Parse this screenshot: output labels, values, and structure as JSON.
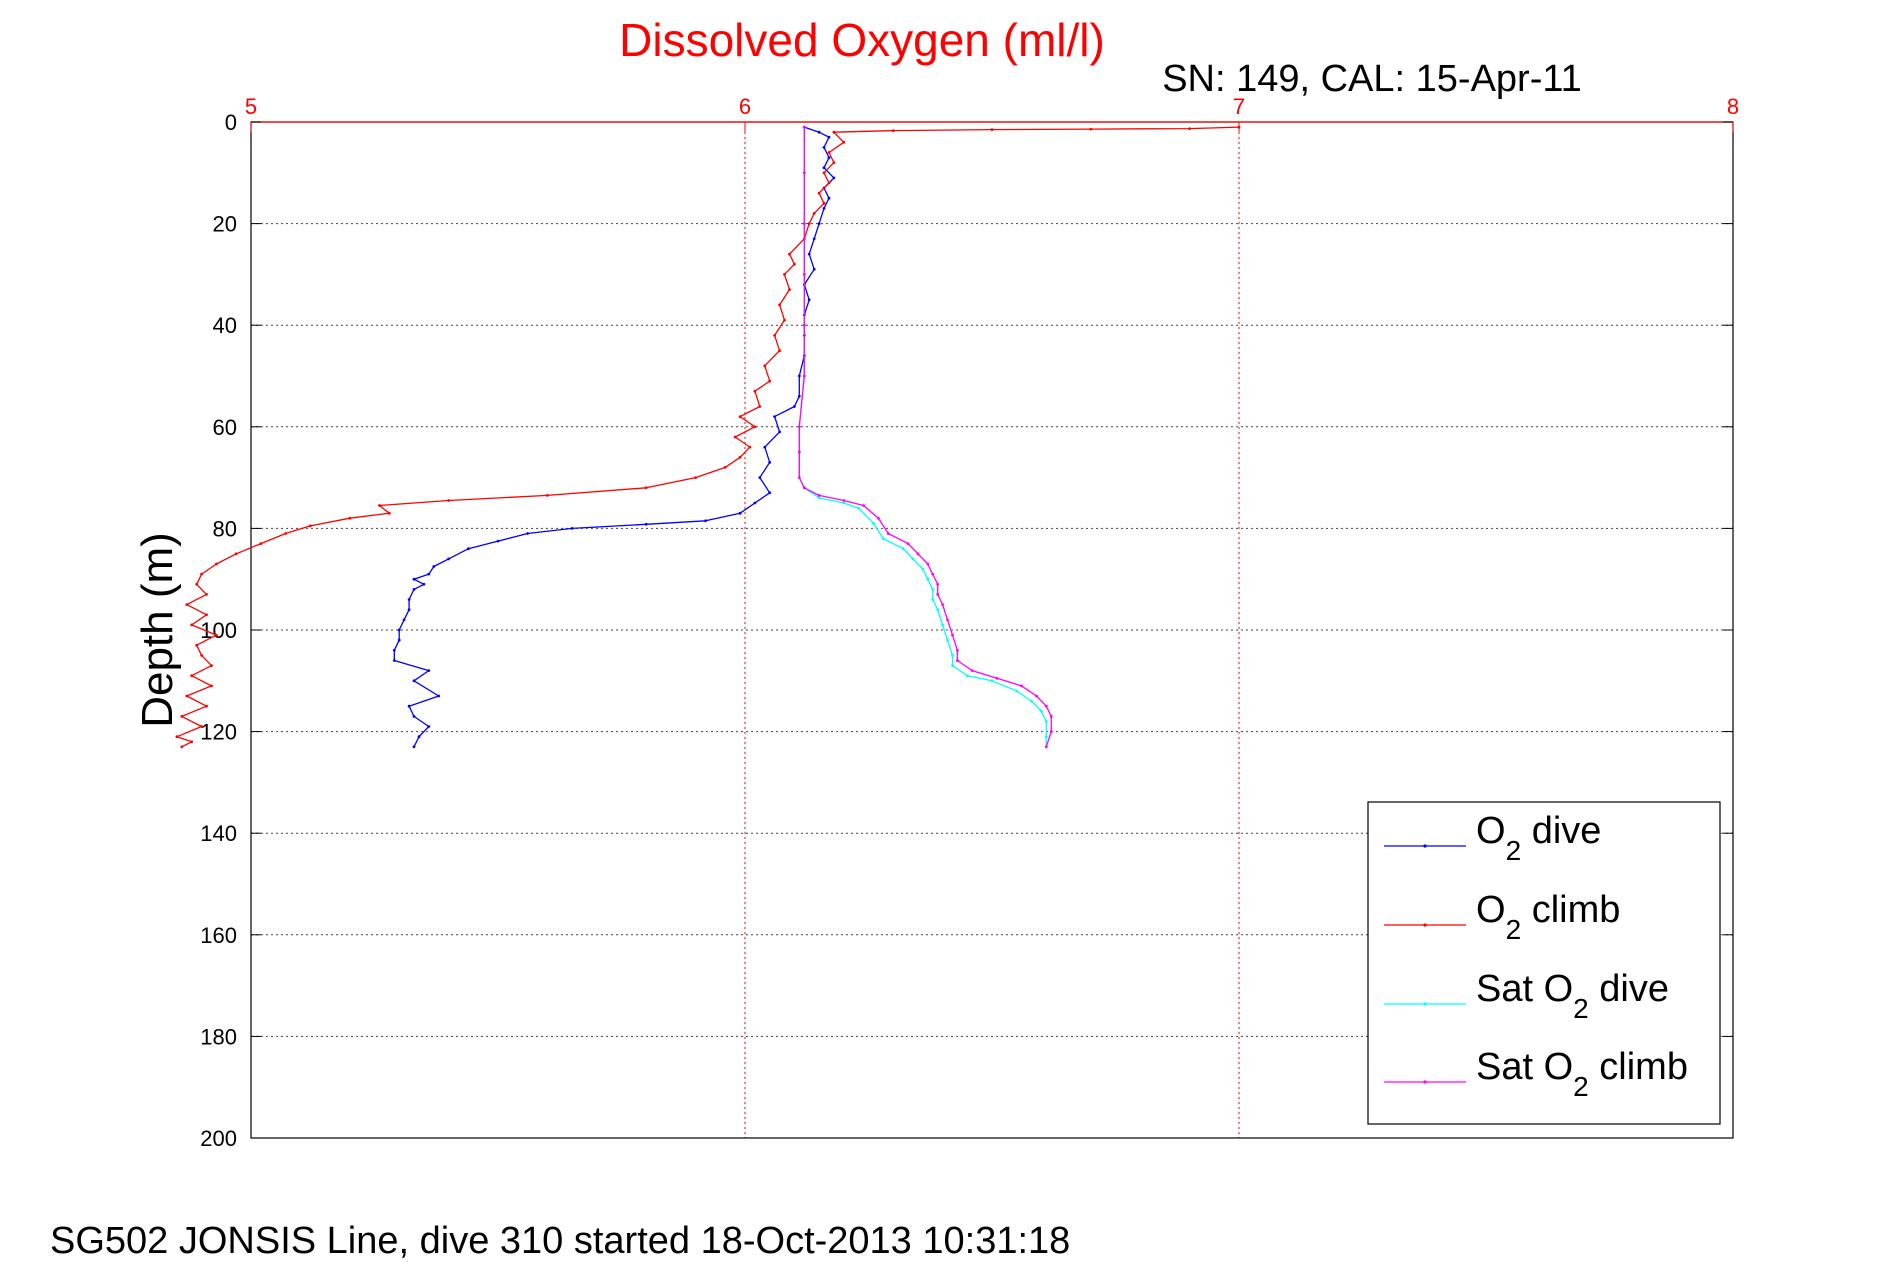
{
  "chart_data": {
    "type": "line",
    "title": "Dissolved Oxygen (ml/l)",
    "subtitle": "SN: 149, CAL: 15-Apr-11",
    "ylabel": "Depth (m)",
    "footer": "SG502 JONSIS Line, dive 310 started 18-Oct-2013 10:31:18",
    "xlim": [
      5,
      8
    ],
    "ylim": [
      0,
      200
    ],
    "y_reversed": true,
    "x_axis_position": "top",
    "xticks": [
      5,
      6,
      7,
      8
    ],
    "yticks": [
      0,
      20,
      40,
      60,
      80,
      100,
      120,
      140,
      160,
      180,
      200
    ],
    "grid": true,
    "legend_position": "bottom-right",
    "series": [
      {
        "name": "O2 dive",
        "legend_label": "O",
        "legend_sub": "2",
        "legend_suffix": " dive",
        "color": "#0000ff",
        "points": [
          [
            6.12,
            1
          ],
          [
            6.15,
            2
          ],
          [
            6.17,
            3
          ],
          [
            6.16,
            5
          ],
          [
            6.17,
            7
          ],
          [
            6.16,
            9
          ],
          [
            6.18,
            11
          ],
          [
            6.16,
            13
          ],
          [
            6.17,
            15
          ],
          [
            6.16,
            17
          ],
          [
            6.15,
            20
          ],
          [
            6.14,
            23
          ],
          [
            6.13,
            26
          ],
          [
            6.14,
            29
          ],
          [
            6.12,
            32
          ],
          [
            6.13,
            35
          ],
          [
            6.12,
            38
          ],
          [
            6.12,
            42
          ],
          [
            6.12,
            46
          ],
          [
            6.11,
            50
          ],
          [
            6.11,
            54
          ],
          [
            6.1,
            56
          ],
          [
            6.06,
            58
          ],
          [
            6.07,
            61
          ],
          [
            6.04,
            64
          ],
          [
            6.05,
            67
          ],
          [
            6.03,
            70
          ],
          [
            6.05,
            73
          ],
          [
            6.02,
            75
          ],
          [
            5.99,
            77
          ],
          [
            5.92,
            78.5
          ],
          [
            5.8,
            79.2
          ],
          [
            5.65,
            80
          ],
          [
            5.56,
            81
          ],
          [
            5.5,
            82.5
          ],
          [
            5.44,
            84
          ],
          [
            5.4,
            86
          ],
          [
            5.37,
            87.5
          ],
          [
            5.36,
            89
          ],
          [
            5.33,
            90
          ],
          [
            5.35,
            91
          ],
          [
            5.33,
            92
          ],
          [
            5.32,
            94
          ],
          [
            5.32,
            96
          ],
          [
            5.31,
            98
          ],
          [
            5.3,
            100
          ],
          [
            5.3,
            102
          ],
          [
            5.29,
            104
          ],
          [
            5.29,
            106
          ],
          [
            5.36,
            108
          ],
          [
            5.33,
            110
          ],
          [
            5.38,
            113
          ],
          [
            5.32,
            115
          ],
          [
            5.33,
            117
          ],
          [
            5.36,
            119
          ],
          [
            5.34,
            121
          ],
          [
            5.33,
            123
          ]
        ]
      },
      {
        "name": "O2 climb",
        "legend_label": "O",
        "legend_sub": "2",
        "legend_suffix": " climb",
        "color": "#ff0000",
        "points": [
          [
            7.0,
            1
          ],
          [
            6.9,
            1.3
          ],
          [
            6.7,
            1.4
          ],
          [
            6.5,
            1.5
          ],
          [
            6.3,
            1.7
          ],
          [
            6.18,
            2
          ],
          [
            6.2,
            4
          ],
          [
            6.17,
            6
          ],
          [
            6.18,
            8
          ],
          [
            6.16,
            10
          ],
          [
            6.17,
            12
          ],
          [
            6.15,
            14
          ],
          [
            6.16,
            16
          ],
          [
            6.14,
            18
          ],
          [
            6.13,
            20
          ],
          [
            6.12,
            23
          ],
          [
            6.09,
            26
          ],
          [
            6.1,
            28
          ],
          [
            6.08,
            30
          ],
          [
            6.09,
            33
          ],
          [
            6.07,
            36
          ],
          [
            6.08,
            39
          ],
          [
            6.06,
            42
          ],
          [
            6.07,
            45
          ],
          [
            6.04,
            48
          ],
          [
            6.05,
            51
          ],
          [
            6.02,
            53
          ],
          [
            6.03,
            56
          ],
          [
            5.99,
            58
          ],
          [
            6.02,
            60
          ],
          [
            5.98,
            62
          ],
          [
            6.01,
            64
          ],
          [
            5.99,
            66
          ],
          [
            5.96,
            68
          ],
          [
            5.9,
            70
          ],
          [
            5.8,
            72
          ],
          [
            5.6,
            73.5
          ],
          [
            5.4,
            74.5
          ],
          [
            5.26,
            75.5
          ],
          [
            5.28,
            77
          ],
          [
            5.2,
            78
          ],
          [
            5.12,
            79.5
          ],
          [
            5.07,
            81
          ],
          [
            5.02,
            83
          ],
          [
            4.97,
            85
          ],
          [
            4.93,
            87
          ],
          [
            4.9,
            89
          ],
          [
            4.89,
            91
          ],
          [
            4.91,
            93
          ],
          [
            4.87,
            95
          ],
          [
            4.91,
            97
          ],
          [
            4.88,
            99
          ],
          [
            4.93,
            101
          ],
          [
            4.89,
            103
          ],
          [
            4.9,
            105
          ],
          [
            4.92,
            107
          ],
          [
            4.88,
            109
          ],
          [
            4.92,
            111
          ],
          [
            4.87,
            113
          ],
          [
            4.91,
            115
          ],
          [
            4.86,
            117
          ],
          [
            4.9,
            119
          ],
          [
            4.85,
            121
          ],
          [
            4.88,
            122
          ],
          [
            4.86,
            123
          ]
        ]
      },
      {
        "name": "Sat O2 dive",
        "legend_label": "Sat O",
        "legend_sub": "2",
        "legend_suffix": " dive",
        "color": "#00ffff",
        "points": [
          [
            6.12,
            1
          ],
          [
            6.12,
            10
          ],
          [
            6.12,
            20
          ],
          [
            6.12,
            30
          ],
          [
            6.12,
            40
          ],
          [
            6.12,
            50
          ],
          [
            6.11,
            60
          ],
          [
            6.11,
            65
          ],
          [
            6.11,
            70
          ],
          [
            6.12,
            72
          ],
          [
            6.15,
            74
          ],
          [
            6.2,
            75
          ],
          [
            6.23,
            76
          ],
          [
            6.26,
            79
          ],
          [
            6.28,
            82
          ],
          [
            6.32,
            84
          ],
          [
            6.34,
            86
          ],
          [
            6.36,
            88
          ],
          [
            6.37,
            90
          ],
          [
            6.38,
            92
          ],
          [
            6.38,
            94
          ],
          [
            6.39,
            96
          ],
          [
            6.4,
            99
          ],
          [
            6.41,
            102
          ],
          [
            6.42,
            105
          ],
          [
            6.42,
            107
          ],
          [
            6.45,
            109
          ],
          [
            6.5,
            110
          ],
          [
            6.55,
            112
          ],
          [
            6.58,
            114
          ],
          [
            6.6,
            116
          ],
          [
            6.61,
            118
          ],
          [
            6.61,
            121
          ],
          [
            6.61,
            123
          ]
        ]
      },
      {
        "name": "Sat O2 climb",
        "legend_label": "Sat O",
        "legend_sub": "2",
        "legend_suffix": " climb",
        "color": "#ff00ff",
        "points": [
          [
            6.12,
            1
          ],
          [
            6.12,
            10
          ],
          [
            6.12,
            20
          ],
          [
            6.12,
            30
          ],
          [
            6.12,
            40
          ],
          [
            6.12,
            50
          ],
          [
            6.11,
            60
          ],
          [
            6.11,
            65
          ],
          [
            6.11,
            70
          ],
          [
            6.12,
            72
          ],
          [
            6.15,
            73.5
          ],
          [
            6.2,
            74.5
          ],
          [
            6.24,
            75.5
          ],
          [
            6.27,
            78
          ],
          [
            6.29,
            81
          ],
          [
            6.33,
            83
          ],
          [
            6.35,
            85
          ],
          [
            6.37,
            87
          ],
          [
            6.38,
            89
          ],
          [
            6.39,
            91
          ],
          [
            6.39,
            93
          ],
          [
            6.4,
            95
          ],
          [
            6.41,
            98
          ],
          [
            6.42,
            101
          ],
          [
            6.43,
            104
          ],
          [
            6.43,
            106
          ],
          [
            6.46,
            108
          ],
          [
            6.51,
            109.5
          ],
          [
            6.56,
            111
          ],
          [
            6.59,
            113
          ],
          [
            6.61,
            115
          ],
          [
            6.62,
            117
          ],
          [
            6.62,
            120
          ],
          [
            6.61,
            123
          ]
        ]
      }
    ]
  }
}
